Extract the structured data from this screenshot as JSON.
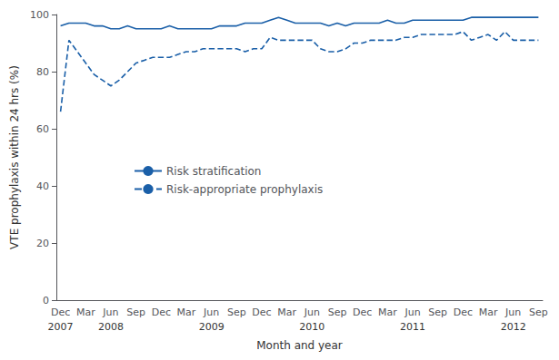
{
  "chart_data": {
    "type": "line",
    "ylabel": "VTE prophylaxis within 24 hrs (%)",
    "xlabel": "Month and year",
    "categories": [
      "Dec",
      null,
      null,
      "Mar",
      null,
      null,
      "Jun",
      null,
      null,
      "Sep",
      null,
      null,
      "Dec",
      null,
      null,
      "Mar",
      null,
      null,
      "Jun",
      null,
      null,
      "Sep",
      null,
      null,
      "Dec",
      null,
      null,
      "Mar",
      null,
      null,
      "Jun",
      null,
      null,
      "Sep",
      null,
      null,
      "Dec",
      null,
      null,
      "Mar",
      null,
      null,
      "Jun",
      null,
      null,
      "Sep",
      null,
      null,
      "Dec",
      null,
      null,
      "Mar",
      null,
      null,
      "Jun",
      null,
      null,
      "Sep"
    ],
    "annotations": [
      {
        "text": "2007",
        "x": 0
      },
      {
        "text": "2008",
        "x": 6
      },
      {
        "text": "2009",
        "x": 18
      },
      {
        "text": "2010",
        "x": 30
      },
      {
        "text": "2011",
        "x": 42
      },
      {
        "text": "2012",
        "x": 54
      }
    ],
    "series": [
      {
        "name": "Risk stratification",
        "color": "#1a5fa8",
        "line_style": "solid",
        "values": [
          96,
          97,
          97,
          97,
          96,
          96,
          95,
          95,
          96,
          95,
          95,
          95,
          95,
          96,
          95,
          95,
          95,
          95,
          95,
          96,
          96,
          96,
          97,
          97,
          97,
          98,
          99,
          98,
          97,
          97,
          97,
          97,
          96,
          97,
          96,
          97,
          97,
          97,
          97,
          98,
          97,
          97,
          98,
          98,
          98,
          98,
          98,
          98,
          98,
          99,
          99,
          99,
          99,
          99,
          99,
          99,
          99,
          99
        ]
      },
      {
        "name": "Risk-appropriate prophylaxis",
        "color": "#1a5fa8",
        "line_style": "dashed",
        "values": [
          66,
          91,
          87,
          83,
          79,
          77,
          75,
          77,
          80,
          83,
          84,
          85,
          85,
          85,
          86,
          87,
          87,
          88,
          88,
          88,
          88,
          88,
          87,
          88,
          88,
          92,
          91,
          91,
          91,
          91,
          91,
          88,
          87,
          87,
          88,
          90,
          90,
          91,
          91,
          91,
          91,
          92,
          92,
          93,
          93,
          93,
          93,
          93,
          94,
          91,
          92,
          93,
          91,
          94,
          91,
          91,
          91,
          91
        ]
      }
    ],
    "ylim": [
      0,
      100
    ],
    "yticks": [
      0,
      20,
      40,
      60,
      80,
      100
    ],
    "grid": false,
    "legend": "left"
  }
}
